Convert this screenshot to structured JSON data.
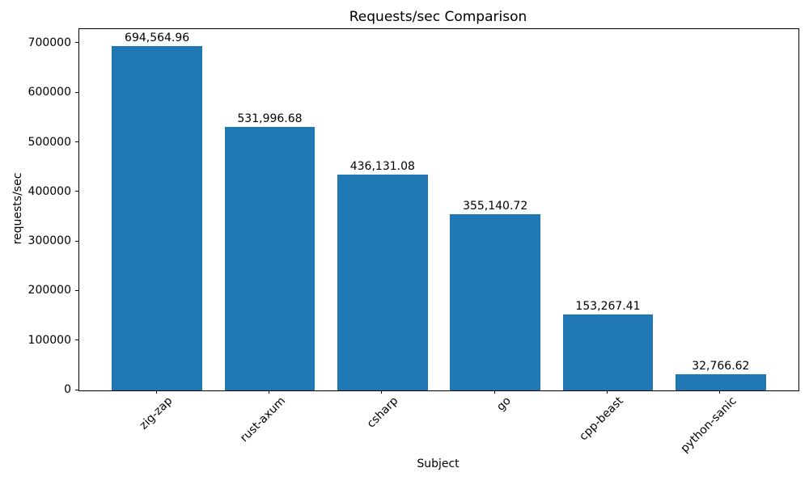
{
  "chart_data": {
    "type": "bar",
    "title": "Requests/sec Comparison",
    "xlabel": "Subject",
    "ylabel": "requests/sec",
    "categories": [
      "zig-zap",
      "rust-axum",
      "csharp",
      "go",
      "cpp-beast",
      "python-sanic"
    ],
    "values": [
      694564.96,
      531996.68,
      436131.08,
      355140.72,
      153267.41,
      32766.62
    ],
    "value_labels": [
      "694,564.96",
      "531,996.68",
      "436,131.08",
      "355,140.72",
      "153,267.41",
      "32,766.62"
    ],
    "yticks": [
      0,
      100000,
      200000,
      300000,
      400000,
      500000,
      600000,
      700000
    ],
    "ytick_labels": [
      "0",
      "100000",
      "200000",
      "300000",
      "400000",
      "500000",
      "600000",
      "700000"
    ],
    "ylim": [
      0,
      729293
    ],
    "bar_color": "#1f77b4",
    "grid": false,
    "legend": false
  }
}
